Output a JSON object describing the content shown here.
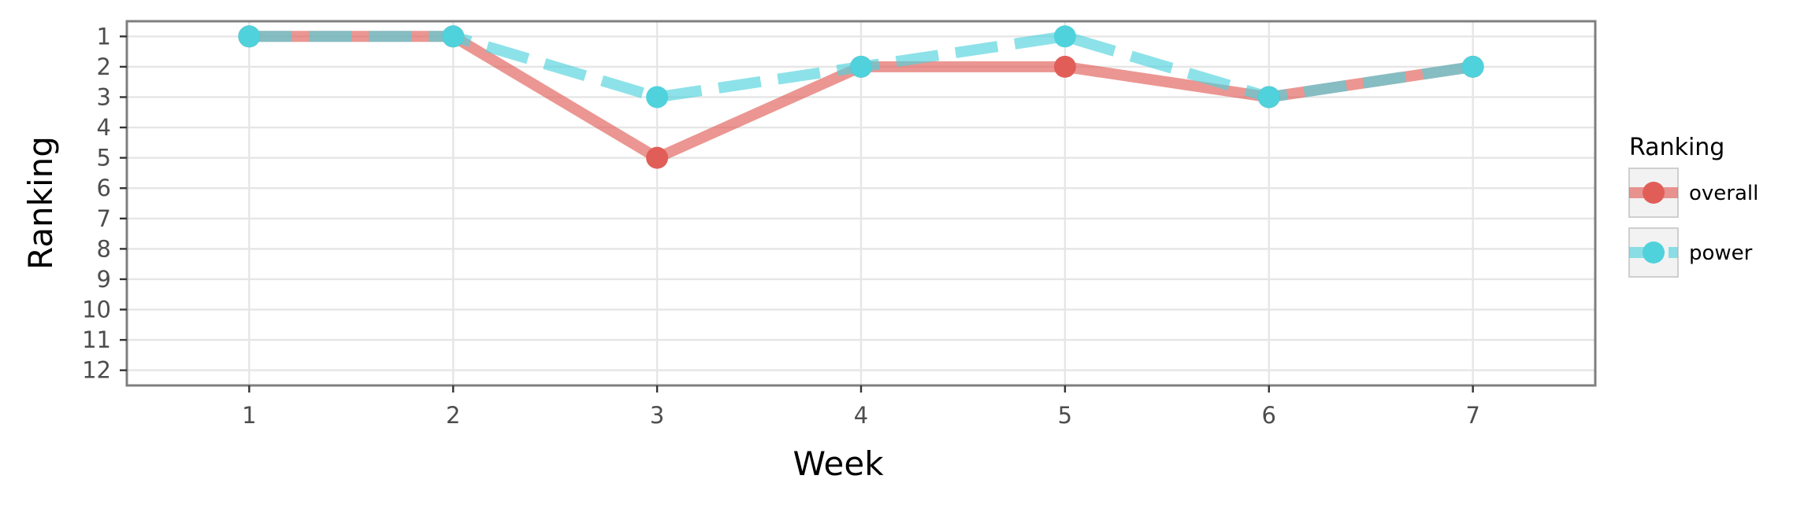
{
  "chart_data": {
    "type": "line",
    "title": "",
    "xlabel": "Week",
    "ylabel": "Ranking",
    "x": [
      1,
      2,
      3,
      4,
      5,
      6,
      7
    ],
    "xlim": [
      0.4,
      7.6
    ],
    "ylim": [
      12.5,
      0.5
    ],
    "y_reversed": true,
    "x_ticks": [
      1,
      2,
      3,
      4,
      5,
      6,
      7
    ],
    "y_ticks": [
      1,
      2,
      3,
      4,
      5,
      6,
      7,
      8,
      9,
      10,
      11,
      12
    ],
    "grid": true,
    "legend": {
      "title": "Ranking",
      "position": "right"
    },
    "series": [
      {
        "name": "overall",
        "values": [
          1,
          1,
          5,
          2,
          2,
          3,
          2
        ],
        "color": "#e15e58",
        "linestyle": "solid"
      },
      {
        "name": "power",
        "values": [
          1,
          1,
          3,
          2,
          1,
          3,
          2
        ],
        "color": "#4fd2dc",
        "linestyle": "dashed"
      }
    ]
  }
}
